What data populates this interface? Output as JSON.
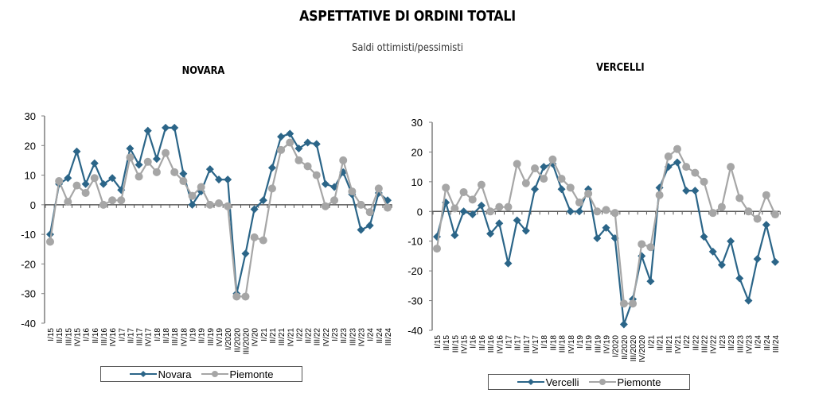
{
  "title": "ASPETTATIVE DI ORDINI TOTALI",
  "subtitle": "Saldi ottimisti/pessimisti",
  "colors": {
    "primary": "#2b6588",
    "piemonte": "#a6a6a6",
    "axis": "#595959"
  },
  "chart_data": [
    {
      "type": "line",
      "title": "NOVARA",
      "xlabel": "",
      "ylabel": "",
      "ylim": [
        -40,
        30
      ],
      "yticks": [
        30,
        20,
        10,
        0,
        -10,
        -20,
        -30,
        -40
      ],
      "legend_position": "bottom",
      "categories": [
        "I/15",
        "II/15",
        "III/15",
        "IV/15",
        "I/16",
        "II/16",
        "III/16",
        "IV/16",
        "I/17",
        "II/17",
        "III/17",
        "IV/17",
        "I/18",
        "II/18",
        "III/18",
        "IV/18",
        "I/19",
        "II/19",
        "III/19",
        "IV/19",
        "I/2020",
        "II/2020",
        "III/2020",
        "IV/20",
        "I/21",
        "II/21",
        "III/21",
        "IV/21",
        "I/22",
        "II/22",
        "III/22",
        "IV/22",
        "I/23",
        "II/23",
        "III/23",
        "IV/23",
        "I/24",
        "II/24",
        "III/24"
      ],
      "series": [
        {
          "name": "Novara",
          "marker": "diamond",
          "values": [
            -10,
            7,
            9,
            18,
            7,
            14,
            7,
            9,
            5,
            19,
            13.5,
            25,
            15.5,
            26,
            26,
            10.5,
            0,
            4.5,
            12,
            8.5,
            8.5,
            -30,
            -16.5,
            -1.5,
            1.5,
            12.5,
            23,
            24,
            19,
            21,
            20.5,
            7,
            6,
            11,
            3.5,
            -8.5,
            -7,
            4,
            1.5
          ]
        },
        {
          "name": "Piemonte",
          "marker": "circle",
          "values": [
            -12.5,
            8,
            1,
            6.5,
            4,
            9,
            0,
            1.5,
            1.5,
            16,
            9.5,
            14.5,
            11,
            17.5,
            11,
            8,
            3,
            6,
            0,
            0.5,
            -0.5,
            -31,
            -31,
            -11,
            -12,
            5.5,
            18.5,
            21,
            15,
            13,
            10,
            -0.5,
            1.5,
            15,
            4.5,
            0,
            -2.5,
            5.5,
            -1
          ]
        }
      ]
    },
    {
      "type": "line",
      "title": "VERCELLI",
      "xlabel": "",
      "ylabel": "",
      "ylim": [
        -40,
        30
      ],
      "yticks": [
        30,
        20,
        10,
        0,
        -10,
        -20,
        -30,
        -40
      ],
      "legend_position": "bottom",
      "categories": [
        "I/15",
        "II/15",
        "III/15",
        "IV/15",
        "I/16",
        "II/16",
        "III/16",
        "IV/16",
        "I/17",
        "II/17",
        "III/17",
        "IV/17",
        "I/18",
        "II/18",
        "III/18",
        "IV/18",
        "I/19",
        "II/19",
        "III/19",
        "IV/19",
        "I/2020",
        "II/2020",
        "III/2020",
        "IV/2020",
        "I/21",
        "II/21",
        "III/21",
        "IV/21",
        "I/22",
        "II/22",
        "III/22",
        "IV/22",
        "I/23",
        "II/23",
        "III/23",
        "IV/23",
        "I/24",
        "II/24",
        "III/24"
      ],
      "series": [
        {
          "name": "Vercelli",
          "marker": "diamond",
          "values": [
            -8.5,
            3,
            -8,
            0,
            -1,
            2,
            -7.5,
            -4,
            -17.5,
            -3,
            -6.5,
            7.5,
            15,
            16,
            7.5,
            0,
            0,
            7.5,
            -9,
            -5.5,
            -9,
            -38,
            -29.5,
            -15,
            -23.5,
            8,
            15,
            16.5,
            7,
            7,
            -8.5,
            -13.5,
            -18,
            -10,
            -22.5,
            -30,
            -16,
            -4.5,
            -17
          ]
        },
        {
          "name": "Piemonte",
          "marker": "circle",
          "values": [
            -12.5,
            8,
            1,
            6.5,
            4,
            9,
            0,
            1.5,
            1.5,
            16,
            9.5,
            14.5,
            11,
            17.5,
            11,
            8,
            3,
            6,
            0,
            0.5,
            -0.5,
            -31,
            -31,
            -11,
            -12,
            5.5,
            18.5,
            21,
            15,
            13,
            10,
            -0.5,
            1.5,
            15,
            4.5,
            0,
            -2.5,
            5.5,
            -1
          ]
        }
      ]
    }
  ]
}
